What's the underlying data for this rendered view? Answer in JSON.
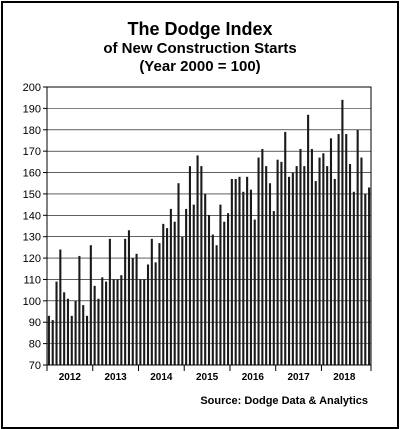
{
  "chart_data": {
    "type": "bar",
    "title": "The Dodge Index",
    "subtitle_1": "of New Construction Starts",
    "subtitle_2": "(Year 2000 = 100)",
    "source": "Source:  Dodge Data & Analytics",
    "ylim": [
      70,
      200
    ],
    "yticks": [
      70,
      80,
      90,
      100,
      110,
      120,
      130,
      140,
      150,
      160,
      170,
      180,
      190,
      200
    ],
    "grid": true,
    "bar_color": "#1a1a1a",
    "year_labels": [
      "2012",
      "2013",
      "2014",
      "2015",
      "2016",
      "2017",
      "2018"
    ],
    "year_start_index": [
      0,
      12,
      24,
      36,
      48,
      60,
      72
    ],
    "values": [
      93,
      91,
      109,
      124,
      104,
      101,
      93,
      100,
      121,
      98,
      93,
      126,
      107,
      101,
      111,
      109,
      129,
      110,
      110,
      112,
      129,
      133,
      120,
      122,
      110,
      110,
      117,
      129,
      118,
      127,
      136,
      134,
      143,
      137,
      155,
      130,
      143,
      163,
      145,
      168,
      163,
      150,
      140,
      131,
      126,
      145,
      137,
      141,
      157,
      157,
      158,
      151,
      158,
      152,
      138,
      167,
      171,
      163,
      155,
      142,
      166,
      165,
      179,
      158,
      160,
      163,
      171,
      163,
      187,
      171,
      156,
      167,
      169,
      163,
      176,
      157,
      178,
      194,
      178,
      164,
      151,
      180,
      167,
      150,
      153
    ]
  }
}
